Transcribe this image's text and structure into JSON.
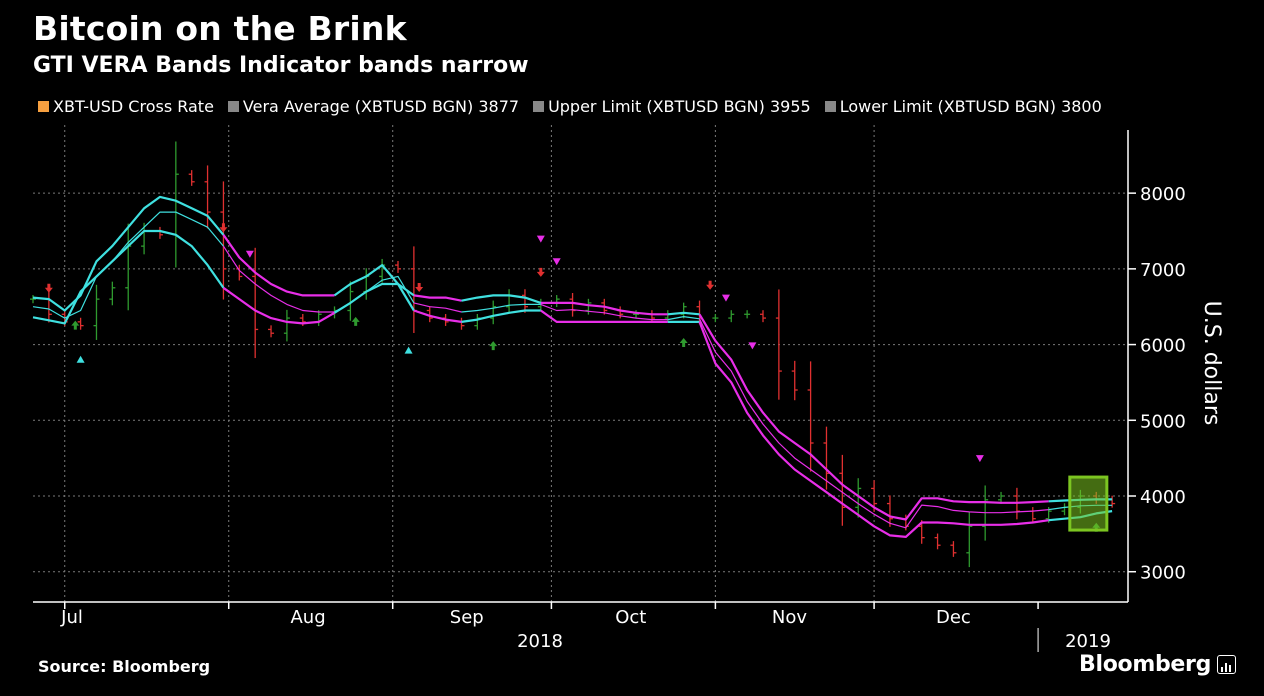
{
  "header": {
    "title": "Bitcoin on the Brink",
    "subtitle": "GTI VERA Bands Indicator bands narrow"
  },
  "footer": {
    "source": "Source: Bloomberg",
    "brand": "Bloomberg"
  },
  "chart_data": {
    "type": "line",
    "title": "Bitcoin on the Brink",
    "subtitle": "GTI VERA Bands Indicator bands narrow",
    "ylabel": "U.S. dollars",
    "xlabel": "",
    "ylim": [
      2600,
      8900
    ],
    "x_range": [
      "2018-06-25",
      "2019-01-18"
    ],
    "y_ticks": [
      3000,
      4000,
      5000,
      6000,
      7000,
      8000
    ],
    "y_tick_labels": [
      "3000",
      "4000",
      "5000",
      "6000",
      "7000",
      "8000"
    ],
    "x_ticks": [
      {
        "date": "2018-07-01",
        "label": "Jul"
      },
      {
        "date": "2018-08-01",
        "label": "Aug"
      },
      {
        "date": "2018-09-01",
        "label": "Sep"
      },
      {
        "date": "2018-10-01",
        "label": "Oct"
      },
      {
        "date": "2018-11-01",
        "label": "Nov"
      },
      {
        "date": "2018-12-01",
        "label": "Dec"
      }
    ],
    "year_labels": [
      {
        "date": "2018-10-01",
        "label": "2018"
      },
      {
        "date": "2019-01-01",
        "label": "2019"
      }
    ],
    "grid": true,
    "legend_position": "top",
    "colors": {
      "up_bar": "#2f9a2f",
      "down_bar": "#e03030",
      "band_bull": "#3fe0e0",
      "band_bear": "#e82ee8",
      "grid": "#7a7a7a",
      "highlight": "#7cc521",
      "legend_rate": "#f7a040",
      "legend_band": "#888888"
    },
    "legend": [
      {
        "label": "XBT-USD Cross Rate",
        "color": "#f7a040"
      },
      {
        "label": "Vera Average (XBTUSD BGN) 3877",
        "color": "#888888"
      },
      {
        "label": "Upper Limit (XBTUSD BGN) 3955",
        "color": "#888888"
      },
      {
        "label": "Lower Limit (XBTUSD BGN) 3800",
        "color": "#888888"
      }
    ],
    "latest": {
      "vera_average": 3877,
      "upper_limit": 3955,
      "lower_limit": 3800
    },
    "x": [
      "2018-06-25",
      "2018-06-28",
      "2018-07-01",
      "2018-07-04",
      "2018-07-07",
      "2018-07-10",
      "2018-07-13",
      "2018-07-16",
      "2018-07-19",
      "2018-07-22",
      "2018-07-25",
      "2018-07-28",
      "2018-07-31",
      "2018-08-03",
      "2018-08-06",
      "2018-08-09",
      "2018-08-12",
      "2018-08-15",
      "2018-08-18",
      "2018-08-21",
      "2018-08-24",
      "2018-08-27",
      "2018-08-30",
      "2018-09-02",
      "2018-09-05",
      "2018-09-08",
      "2018-09-11",
      "2018-09-14",
      "2018-09-17",
      "2018-09-20",
      "2018-09-23",
      "2018-09-26",
      "2018-09-29",
      "2018-10-02",
      "2018-10-05",
      "2018-10-08",
      "2018-10-11",
      "2018-10-14",
      "2018-10-17",
      "2018-10-20",
      "2018-10-23",
      "2018-10-26",
      "2018-10-29",
      "2018-11-01",
      "2018-11-04",
      "2018-11-07",
      "2018-11-10",
      "2018-11-13",
      "2018-11-16",
      "2018-11-19",
      "2018-11-22",
      "2018-11-25",
      "2018-11-28",
      "2018-12-01",
      "2018-12-04",
      "2018-12-07",
      "2018-12-10",
      "2018-12-13",
      "2018-12-16",
      "2018-12-19",
      "2018-12-22",
      "2018-12-25",
      "2018-12-28",
      "2018-12-31",
      "2019-01-03",
      "2019-01-06",
      "2019-01-09",
      "2019-01-12",
      "2019-01-15"
    ],
    "series": [
      {
        "name": "XBT-USD Cross Rate",
        "values": [
          6600,
          6400,
          6300,
          6250,
          6600,
          6750,
          7300,
          7500,
          7450,
          8250,
          8150,
          7750,
          7000,
          6900,
          6200,
          6150,
          6350,
          6300,
          6400,
          6450,
          6700,
          6900,
          7050,
          7000,
          6450,
          6350,
          6300,
          6250,
          6350,
          6500,
          6650,
          6500,
          6550,
          6600,
          6450,
          6550,
          6450,
          6400,
          6400,
          6350,
          6400,
          6500,
          6350,
          6350,
          6400,
          6400,
          6350,
          5650,
          5400,
          4700,
          4300,
          3850,
          4100,
          3900,
          3700,
          3600,
          3450,
          3350,
          3250,
          3600,
          3950,
          4000,
          3800,
          3700,
          3800,
          3850,
          4000,
          3950,
          3900
        ]
      },
      {
        "name": "Vera Average (XBTUSD BGN) 3877",
        "values": [
          6500,
          6470,
          6350,
          6450,
          6900,
          7100,
          7350,
          7550,
          7750,
          7750,
          7650,
          7550,
          7300,
          6980,
          6800,
          6650,
          6530,
          6450,
          6430,
          6430,
          6550,
          6700,
          6850,
          6900,
          6550,
          6500,
          6480,
          6430,
          6450,
          6480,
          6520,
          6530,
          6530,
          6450,
          6460,
          6440,
          6420,
          6380,
          6350,
          6330,
          6330,
          6370,
          6340,
          5900,
          5650,
          5250,
          4950,
          4700,
          4500,
          4350,
          4200,
          4050,
          3900,
          3760,
          3640,
          3580,
          3880,
          3860,
          3810,
          3790,
          3780,
          3780,
          3790,
          3800,
          3820,
          3850,
          3870,
          3877,
          3877
        ]
      },
      {
        "name": "Upper Limit (XBTUSD BGN) 3955",
        "values": [
          6620,
          6600,
          6450,
          6650,
          7100,
          7300,
          7550,
          7800,
          7950,
          7900,
          7800,
          7700,
          7450,
          7150,
          6950,
          6800,
          6700,
          6650,
          6650,
          6650,
          6800,
          6900,
          7050,
          6800,
          6650,
          6620,
          6620,
          6580,
          6620,
          6650,
          6650,
          6620,
          6550,
          6550,
          6550,
          6520,
          6500,
          6450,
          6420,
          6400,
          6400,
          6420,
          6400,
          6050,
          5800,
          5400,
          5100,
          4850,
          4700,
          4550,
          4350,
          4150,
          4000,
          3850,
          3730,
          3690,
          3970,
          3970,
          3930,
          3920,
          3920,
          3910,
          3910,
          3920,
          3930,
          3940,
          3950,
          3955,
          3955
        ]
      },
      {
        "name": "Lower Limit (XBTUSD BGN) 3800",
        "values": [
          6360,
          6320,
          6280,
          6700,
          6900,
          7100,
          7300,
          7500,
          7500,
          7450,
          7300,
          7050,
          6750,
          6600,
          6450,
          6350,
          6300,
          6280,
          6300,
          6420,
          6550,
          6700,
          6800,
          6800,
          6450,
          6380,
          6330,
          6300,
          6330,
          6380,
          6420,
          6450,
          6450,
          6300,
          6300,
          6300,
          6300,
          6300,
          6300,
          6300,
          6300,
          6300,
          6300,
          5750,
          5500,
          5100,
          4800,
          4550,
          4350,
          4200,
          4050,
          3900,
          3750,
          3600,
          3480,
          3460,
          3650,
          3650,
          3640,
          3620,
          3620,
          3620,
          3630,
          3650,
          3680,
          3700,
          3720,
          3770,
          3800
        ]
      }
    ],
    "band_regime": [
      "bull",
      "bull",
      "bull",
      "bull",
      "bull",
      "bull",
      "bull",
      "bull",
      "bull",
      "bull",
      "bull",
      "bull",
      "bear",
      "bear",
      "bear",
      "bear",
      "bear",
      "bear",
      "bear",
      "bull",
      "bull",
      "bull",
      "bull",
      "bull",
      "bear",
      "bear",
      "bear",
      "bull",
      "bull",
      "bull",
      "bull",
      "bull",
      "bear",
      "bear",
      "bear",
      "bear",
      "bear",
      "bear",
      "bear",
      "bear",
      "bull",
      "bull",
      "bear",
      "bear",
      "bear",
      "bear",
      "bear",
      "bear",
      "bear",
      "bear",
      "bear",
      "bear",
      "bear",
      "bear",
      "bear",
      "bear",
      "bear",
      "bear",
      "bear",
      "bear",
      "bear",
      "bear",
      "bear",
      "bear",
      "bull",
      "bull",
      "bull",
      "bull",
      "bull"
    ],
    "signals": [
      {
        "date": "2018-06-28",
        "value": 6750,
        "type": "sell-arrow"
      },
      {
        "date": "2018-07-03",
        "value": 6250,
        "type": "buy-arrow"
      },
      {
        "date": "2018-07-04",
        "value": 5800,
        "type": "buy-triangle"
      },
      {
        "date": "2018-07-31",
        "value": 7550,
        "type": "sell-arrow"
      },
      {
        "date": "2018-08-05",
        "value": 7200,
        "type": "sell-triangle"
      },
      {
        "date": "2018-08-25",
        "value": 6300,
        "type": "buy-arrow"
      },
      {
        "date": "2018-09-04",
        "value": 5920,
        "type": "buy-triangle"
      },
      {
        "date": "2018-09-06",
        "value": 6760,
        "type": "sell-arrow"
      },
      {
        "date": "2018-09-20",
        "value": 5980,
        "type": "buy-arrow"
      },
      {
        "date": "2018-09-29",
        "value": 7400,
        "type": "sell-triangle"
      },
      {
        "date": "2018-09-29",
        "value": 6960,
        "type": "sell-arrow"
      },
      {
        "date": "2018-10-02",
        "value": 7100,
        "type": "sell-triangle"
      },
      {
        "date": "2018-10-26",
        "value": 6020,
        "type": "buy-arrow"
      },
      {
        "date": "2018-10-31",
        "value": 6790,
        "type": "sell-arrow"
      },
      {
        "date": "2018-11-03",
        "value": 6620,
        "type": "sell-triangle"
      },
      {
        "date": "2018-11-08",
        "value": 5990,
        "type": "sell-triangle"
      },
      {
        "date": "2018-12-21",
        "value": 4500,
        "type": "sell-triangle"
      },
      {
        "date": "2019-01-12",
        "value": 3580,
        "type": "buy-arrow"
      }
    ],
    "highlight_box": {
      "x_start": "2019-01-07",
      "x_end": "2019-01-14",
      "y_low": 3550,
      "y_high": 4250
    }
  }
}
